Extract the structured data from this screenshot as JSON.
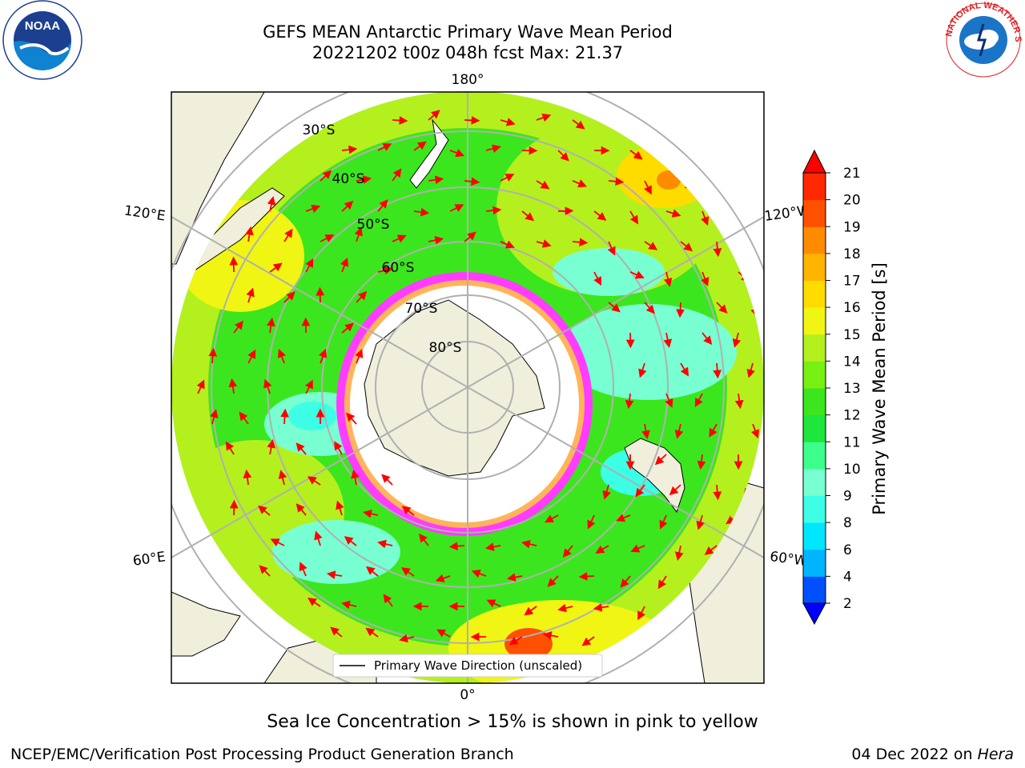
{
  "header": {
    "title_line1": "GEFS MEAN Antarctic Primary Wave Mean Period",
    "title_line2": "20221202 t00z 048h fcst   Max: 21.37"
  },
  "map": {
    "projection": "south polar stereographic",
    "meridian_labels": {
      "top": "180°",
      "bottom": "0°",
      "left_upper": "120°E",
      "left_lower": "60°E",
      "right_upper": "120°W",
      "right_lower": "60°W"
    },
    "parallel_labels": [
      "30°S",
      "40°S",
      "50°S",
      "60°S",
      "70°S",
      "80°S"
    ],
    "legend_label": "Primary Wave Direction (unscaled)"
  },
  "colorbar": {
    "label": "Primary Wave Mean Period [s]",
    "ticks": [
      "2",
      "4",
      "6",
      "8",
      "9",
      "10",
      "11",
      "12",
      "13",
      "14",
      "15",
      "16",
      "17",
      "18",
      "19",
      "20",
      "21"
    ],
    "colors": [
      "#0000ff",
      "#0050ff",
      "#00b4ff",
      "#00e6ff",
      "#3cffe6",
      "#78ffd2",
      "#3cff8c",
      "#1ee63c",
      "#3ce61e",
      "#78f014",
      "#b4f01e",
      "#f0f514",
      "#ffdc00",
      "#ffb400",
      "#ff8c00",
      "#ff5000",
      "#ff2800",
      "#ff0000"
    ]
  },
  "footer": {
    "caption": "Sea Ice Concentration > 15% is shown in pink to yellow",
    "credit": "NCEP/EMC/Verification Post Processing Product Generation Branch",
    "date": "04 Dec 2022 on",
    "host": "Hera"
  },
  "logos": {
    "left": "noaa-logo",
    "right": "nws-logo"
  }
}
